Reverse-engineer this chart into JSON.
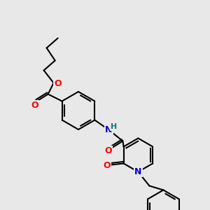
{
  "background_color": "#e8e8e8",
  "atom_colors": {
    "O": "#ff0000",
    "N_amide": "#0000cc",
    "N_pyridine": "#0000cc",
    "H": "#008080",
    "F": "#ff00ff",
    "C": "#000000"
  },
  "bond_color": "#000000",
  "bond_width": 1.5,
  "font_size_atoms": 9,
  "figsize": [
    3.0,
    3.0
  ],
  "dpi": 100
}
